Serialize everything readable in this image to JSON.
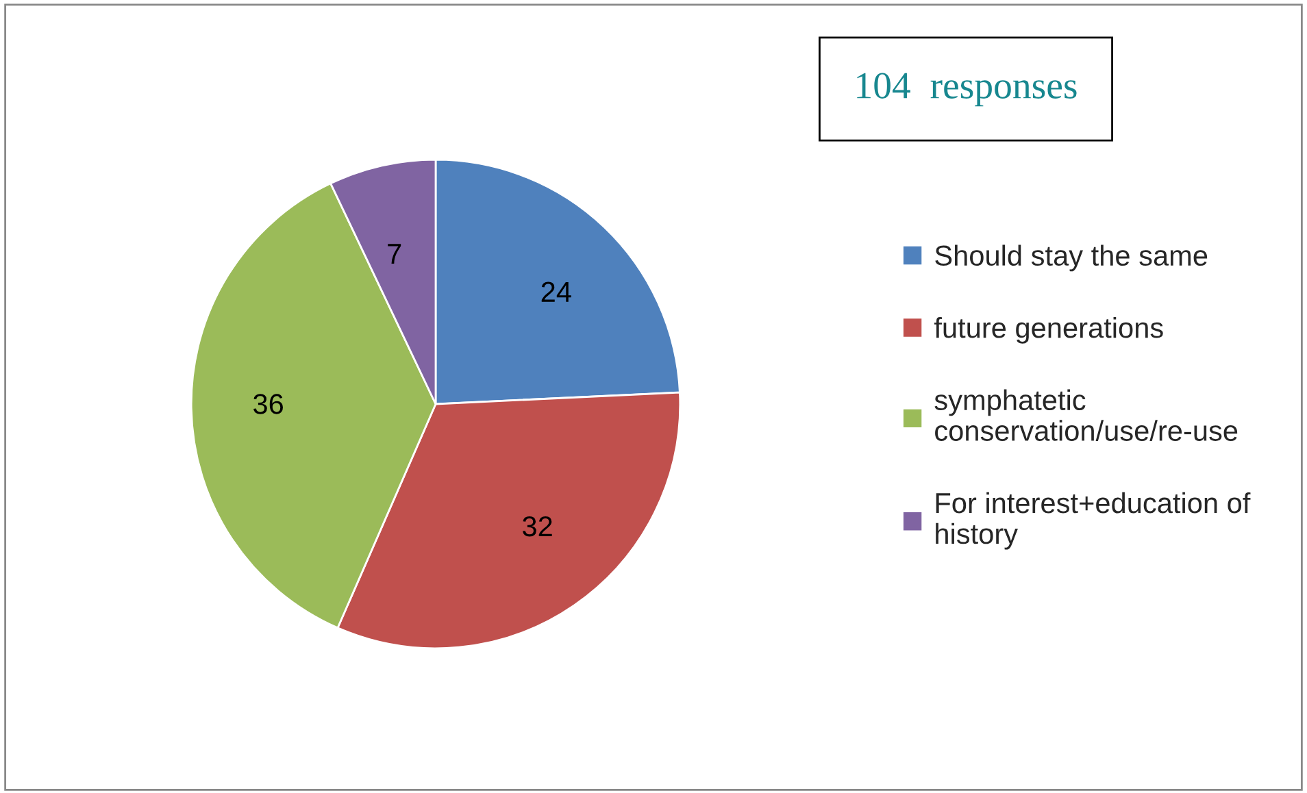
{
  "chart_data": {
    "type": "pie",
    "title": "104  responses",
    "categories": [
      "Should stay the same",
      "future generations",
      "symphatetic conservation/use/re-use",
      "For interest+education of history"
    ],
    "values": [
      24,
      32,
      36,
      7
    ],
    "colors": [
      "#4f81bd",
      "#c0504d",
      "#9bbb59",
      "#8064a2"
    ],
    "data_labels": true,
    "legend": "right"
  }
}
